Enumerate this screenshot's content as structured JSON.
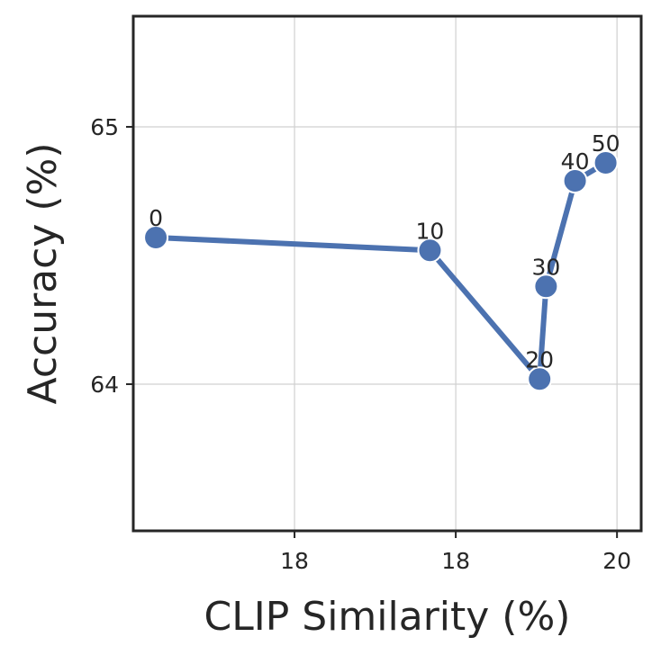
{
  "chart_data": {
    "type": "line",
    "title": "",
    "xlabel": "CLIP Similarity (%)",
    "ylabel": "Accuracy (%)",
    "x_tick_labels": [
      "18",
      "18",
      "20"
    ],
    "y_tick_labels": [
      "64",
      "65"
    ],
    "xlim": [
      17.0,
      20.15
    ],
    "ylim": [
      63.43,
      65.43
    ],
    "grid": true,
    "legend": "none",
    "color": "#4C72B0",
    "series": [
      {
        "x": [
          17.14,
          18.84,
          19.52,
          19.56,
          19.74,
          19.93
        ],
        "y": [
          64.57,
          64.52,
          64.02,
          64.38,
          64.79,
          64.86
        ],
        "point_labels": [
          "0",
          "10",
          "20",
          "30",
          "40",
          "50"
        ]
      }
    ]
  }
}
